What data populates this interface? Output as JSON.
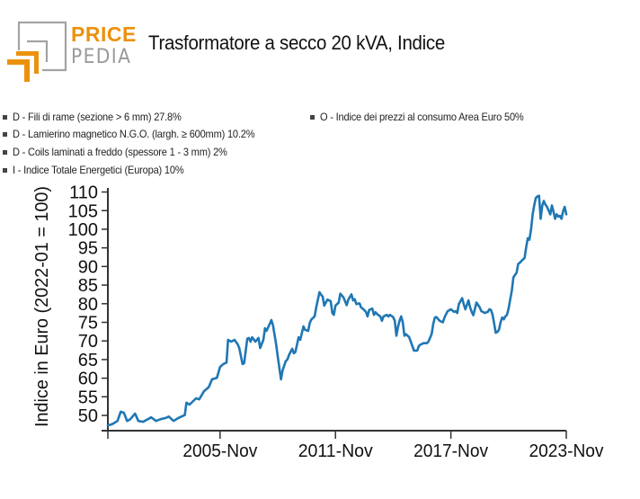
{
  "logo": {
    "brand_top": "PRICE",
    "brand_bottom": "PEDIA"
  },
  "colors": {
    "brand_orange": "#EB910E",
    "brand_gray": "#9a9a9a",
    "series_line": "#1f77b4",
    "axis": "#333333",
    "legend_marker": "#444444"
  },
  "chart_data": {
    "type": "line",
    "title": "Trasformatore a secco 20 kVA, Indice",
    "xlabel": "",
    "ylabel": "Indice in Euro (2022-01 = 100)",
    "ylim": [
      45.9,
      111.1
    ],
    "xlim": [
      "2000-01",
      "2023-11"
    ],
    "grid": false,
    "legend_position": "top-left",
    "yticks": [
      50,
      55,
      60,
      65,
      70,
      75,
      80,
      85,
      90,
      95,
      100,
      105,
      110
    ],
    "xticks": [
      {
        "date": "2000-01",
        "label": ""
      },
      {
        "date": "2005-11",
        "label": "2005-Nov"
      },
      {
        "date": "2011-11",
        "label": "2011-Nov"
      },
      {
        "date": "2017-11",
        "label": "2017-Nov"
      },
      {
        "date": "2023-11",
        "label": "2023-Nov"
      }
    ],
    "legend": [
      {
        "label": "D - Fili di rame (sezione > 6 mm) 27.8%"
      },
      {
        "label": "D - Lamierino magnetico N.G.O. (largh. ≥ 600mm) 10.2%"
      },
      {
        "label": "D - Coils laminati a freddo (spessore 1 - 3 mm) 2%"
      },
      {
        "label": "I - Indice Totale Energetici (Europa) 10%"
      },
      {
        "label": "O - Indice dei prezzi al consumo Area Euro 50%"
      }
    ],
    "series": [
      {
        "name": "Trasformatore a secco 20 kVA, Indice",
        "color": "#1f77b4",
        "x": [
          "2000-01",
          "2000-04",
          "2000-07",
          "2000-09",
          "2000-11",
          "2001-01",
          "2001-03",
          "2001-06",
          "2001-08",
          "2001-11",
          "2002-02",
          "2002-04",
          "2002-07",
          "2002-10",
          "2003-01",
          "2003-03",
          "2003-06",
          "2003-09",
          "2004-01",
          "2004-02",
          "2004-04",
          "2004-08",
          "2004-10",
          "2005-01",
          "2005-04",
          "2005-06",
          "2005-09",
          "2005-11",
          "2006-01",
          "2006-03",
          "2006-04",
          "2006-06",
          "2006-08",
          "2006-10",
          "2006-11",
          "2007-01",
          "2007-02",
          "2007-04",
          "2007-05",
          "2007-06",
          "2007-07",
          "2007-09",
          "2007-11",
          "2007-12",
          "2008-02",
          "2008-03",
          "2008-04",
          "2008-06",
          "2008-07",
          "2008-08",
          "2008-10",
          "2008-11",
          "2009-01",
          "2009-02",
          "2009-04",
          "2009-05",
          "2009-06",
          "2009-08",
          "2009-09",
          "2009-10",
          "2009-12",
          "2010-01",
          "2010-03",
          "2010-04",
          "2010-06",
          "2010-07",
          "2010-08",
          "2010-10",
          "2010-11",
          "2011-01",
          "2011-02",
          "2011-03",
          "2011-04",
          "2011-06",
          "2011-08",
          "2011-09",
          "2011-10",
          "2011-11",
          "2012-01",
          "2012-02",
          "2012-04",
          "2012-06",
          "2012-07",
          "2012-09",
          "2012-10",
          "2012-11",
          "2012-12",
          "2013-02",
          "2013-03",
          "2013-04",
          "2013-06",
          "2013-07",
          "2013-08",
          "2013-10",
          "2013-11",
          "2013-12",
          "2014-01",
          "2014-03",
          "2014-04",
          "2014-05",
          "2014-07",
          "2014-08",
          "2014-09",
          "2014-11",
          "2014-12",
          "2015-01",
          "2015-02",
          "2015-03",
          "2015-04",
          "2015-05",
          "2015-06",
          "2015-07",
          "2015-09",
          "2015-10",
          "2015-11",
          "2015-12",
          "2016-02",
          "2016-03",
          "2016-04",
          "2016-06",
          "2016-08",
          "2016-09",
          "2016-11",
          "2016-12",
          "2017-01",
          "2017-02",
          "2017-04",
          "2017-06",
          "2017-07",
          "2017-09",
          "2017-11",
          "2018-01",
          "2018-02",
          "2018-03",
          "2018-04",
          "2018-06",
          "2018-07",
          "2018-08",
          "2018-10",
          "2018-11",
          "2018-12",
          "2019-01",
          "2019-02",
          "2019-03",
          "2019-05",
          "2019-06",
          "2019-07",
          "2019-08",
          "2019-10",
          "2019-11",
          "2019-12",
          "2020-01",
          "2020-02",
          "2020-03",
          "2020-04",
          "2020-05",
          "2020-06",
          "2020-07",
          "2020-08",
          "2020-09",
          "2020-10",
          "2020-11",
          "2020-12",
          "2021-01",
          "2021-02",
          "2021-04",
          "2021-05",
          "2021-06",
          "2021-07",
          "2021-08",
          "2021-09",
          "2021-10",
          "2021-11",
          "2021-12",
          "2022-01",
          "2022-02",
          "2022-03",
          "2022-04",
          "2022-05",
          "2022-06",
          "2022-07",
          "2022-08",
          "2022-09",
          "2022-10",
          "2022-11",
          "2023-01",
          "2023-02",
          "2023-03",
          "2023-04",
          "2023-05",
          "2023-06",
          "2023-07",
          "2023-08",
          "2023-09",
          "2023-10",
          "2023-11"
        ],
        "y": [
          47.3,
          47.7,
          48.5,
          51.0,
          50.7,
          48.5,
          49.0,
          50.5,
          48.5,
          48.3,
          49.0,
          49.5,
          48.5,
          49.0,
          49.3,
          49.7,
          48.5,
          49.3,
          50.1,
          53.4,
          52.9,
          54.6,
          54.3,
          56.5,
          57.6,
          59.7,
          60.1,
          63.0,
          63.8,
          64.2,
          70.3,
          69.8,
          70.3,
          69.1,
          68.1,
          63.8,
          64.0,
          70.6,
          70.8,
          69.8,
          71.0,
          69.8,
          70.8,
          68.1,
          70.3,
          73.4,
          72.7,
          74.6,
          75.6,
          74.2,
          69.1,
          65.8,
          59.7,
          62.1,
          64.6,
          65.0,
          66.2,
          67.9,
          66.7,
          67.0,
          71.0,
          70.3,
          73.9,
          73.0,
          72.7,
          74.9,
          75.8,
          76.6,
          79.0,
          83.1,
          82.4,
          81.9,
          79.5,
          81.1,
          80.7,
          77.5,
          77.0,
          79.5,
          80.3,
          82.7,
          81.7,
          79.6,
          81.1,
          82.5,
          80.9,
          81.2,
          79.9,
          80.1,
          79.0,
          78.7,
          77.8,
          76.6,
          78.3,
          78.7,
          77.0,
          77.7,
          77.2,
          76.6,
          75.4,
          76.6,
          77.0,
          76.6,
          77.0,
          76.4,
          75.4,
          71.4,
          73.8,
          75.4,
          76.6,
          75.0,
          71.4,
          71.8,
          71.0,
          69.8,
          68.6,
          67.4,
          67.4,
          68.6,
          69.0,
          69.4,
          69.4,
          69.8,
          71.8,
          74.6,
          76.3,
          76.4,
          75.4,
          75.0,
          76.3,
          78.0,
          78.5,
          77.8,
          78.0,
          77.5,
          79.9,
          81.5,
          79.9,
          78.5,
          80.9,
          79.0,
          77.8,
          76.9,
          78.7,
          80.3,
          79.0,
          78.0,
          77.8,
          77.5,
          77.8,
          78.5,
          78.3,
          77.0,
          74.6,
          72.2,
          72.4,
          73.0,
          75.0,
          76.3,
          75.8,
          76.6,
          77.0,
          78.7,
          81.1,
          83.5,
          87.1,
          88.3,
          90.7,
          91.0,
          91.5,
          91.9,
          92.3,
          95.2,
          97.6,
          97.2,
          100.0,
          104.0,
          106.4,
          108.4,
          108.8,
          109.0,
          102.8,
          106.4,
          107.6,
          106.6,
          106.0,
          104.0,
          106.4,
          104.8,
          102.8,
          104.0,
          103.4,
          103.6,
          102.8,
          104.8,
          106.0,
          104.0
        ]
      }
    ]
  }
}
